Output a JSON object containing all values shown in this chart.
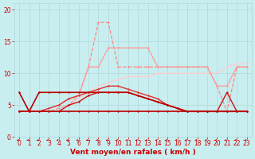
{
  "bg_color": "#c8eef0",
  "grid_color": "#b0d8da",
  "xlabel": "Vent moyen/en rafales ( km/h )",
  "xlim": [
    -0.5,
    23.5
  ],
  "ylim": [
    0,
    21
  ],
  "yticks": [
    0,
    5,
    10,
    15,
    20
  ],
  "xticks": [
    0,
    1,
    2,
    3,
    4,
    5,
    6,
    7,
    8,
    9,
    10,
    11,
    12,
    13,
    14,
    15,
    16,
    17,
    18,
    19,
    20,
    21,
    22,
    23
  ],
  "lines": [
    {
      "x": [
        0,
        1,
        2,
        3,
        4,
        5,
        6,
        7,
        8,
        9,
        10,
        11,
        12,
        13,
        14,
        15,
        16,
        17,
        18,
        19,
        20,
        21,
        22,
        23
      ],
      "y": [
        4,
        4,
        4,
        4,
        4,
        4,
        4,
        4,
        4,
        4,
        4,
        4,
        4,
        4,
        4,
        4,
        4,
        4,
        4,
        4,
        4,
        4,
        4,
        4
      ],
      "color": "#bb0000",
      "lw": 1.2,
      "marker": "D",
      "ms": 1.5,
      "ls": "-",
      "zorder": 5
    },
    {
      "x": [
        0,
        1,
        2,
        3,
        4,
        5,
        6,
        7,
        8,
        9,
        10,
        11,
        12,
        13,
        14,
        15,
        16,
        17,
        18,
        19,
        20,
        21,
        22,
        23
      ],
      "y": [
        7,
        4,
        7,
        7,
        7,
        7,
        7,
        7,
        7,
        7,
        7,
        7,
        6.5,
        6,
        5.5,
        5,
        4.5,
        4,
        4,
        4,
        4,
        4,
        4,
        4
      ],
      "color": "#bb0000",
      "lw": 1.2,
      "marker": "D",
      "ms": 1.5,
      "ls": "-",
      "zorder": 5
    },
    {
      "x": [
        0,
        1,
        2,
        3,
        4,
        5,
        6,
        7,
        8,
        9,
        10,
        11,
        12,
        13,
        14,
        15,
        16,
        17,
        18,
        19,
        20,
        21,
        22,
        23
      ],
      "y": [
        4,
        4,
        4,
        4,
        4,
        5,
        5.5,
        6.5,
        7,
        7,
        7,
        7,
        6.5,
        6,
        5.5,
        5,
        4.5,
        4,
        4,
        4,
        4,
        7,
        4,
        4
      ],
      "color": "#cc1111",
      "lw": 1.0,
      "marker": "D",
      "ms": 1.5,
      "ls": "-",
      "zorder": 4
    },
    {
      "x": [
        0,
        1,
        2,
        3,
        4,
        5,
        6,
        7,
        8,
        9,
        10,
        11,
        12,
        13,
        14,
        15,
        16,
        17,
        18,
        19,
        20,
        21,
        22,
        23
      ],
      "y": [
        4,
        4,
        4,
        4.5,
        5,
        6,
        6.5,
        7,
        7.5,
        8,
        8,
        7.5,
        7,
        6.5,
        6,
        5,
        4.5,
        4,
        4,
        4,
        4,
        4,
        4,
        4
      ],
      "color": "#dd3333",
      "lw": 1.0,
      "marker": "D",
      "ms": 1.5,
      "ls": "-",
      "zorder": 4
    },
    {
      "x": [
        0,
        1,
        2,
        3,
        4,
        5,
        6,
        7,
        8,
        9,
        10,
        11,
        12,
        13,
        14,
        15,
        16,
        17,
        18,
        19,
        20,
        21,
        22,
        23
      ],
      "y": [
        4,
        4,
        4,
        4,
        4.5,
        5,
        6.5,
        11,
        18,
        18,
        11,
        11,
        11,
        11,
        11,
        11,
        11,
        11,
        11,
        11,
        8,
        4,
        11,
        11
      ],
      "color": "#ff8888",
      "lw": 0.9,
      "marker": "D",
      "ms": 1.5,
      "ls": "--",
      "zorder": 3
    },
    {
      "x": [
        0,
        1,
        2,
        3,
        4,
        5,
        6,
        7,
        8,
        9,
        10,
        11,
        12,
        13,
        14,
        15,
        16,
        17,
        18,
        19,
        20,
        21,
        22,
        23
      ],
      "y": [
        4,
        4,
        4,
        4.5,
        5,
        6,
        6.5,
        11,
        11,
        14,
        14,
        14,
        14,
        14,
        11,
        11,
        11,
        11,
        11,
        11,
        8,
        8,
        11,
        11
      ],
      "color": "#ff9999",
      "lw": 0.9,
      "marker": "D",
      "ms": 1.5,
      "ls": "-",
      "zorder": 3
    },
    {
      "x": [
        0,
        1,
        2,
        3,
        4,
        5,
        6,
        7,
        8,
        9,
        10,
        11,
        12,
        13,
        14,
        15,
        16,
        17,
        18,
        19,
        20,
        21,
        22,
        23
      ],
      "y": [
        4,
        4,
        4,
        4,
        4,
        5,
        6,
        7,
        8,
        8.5,
        9,
        9.5,
        9.5,
        9.5,
        10,
        10,
        10,
        10,
        10,
        10,
        10,
        11,
        11.5,
        11.5
      ],
      "color": "#ffcccc",
      "lw": 0.9,
      "marker": "D",
      "ms": 1.5,
      "ls": "-",
      "zorder": 2
    }
  ],
  "arrow_color": "#cc0000",
  "xlabel_fontsize": 6.5,
  "tick_fontsize": 5.5
}
